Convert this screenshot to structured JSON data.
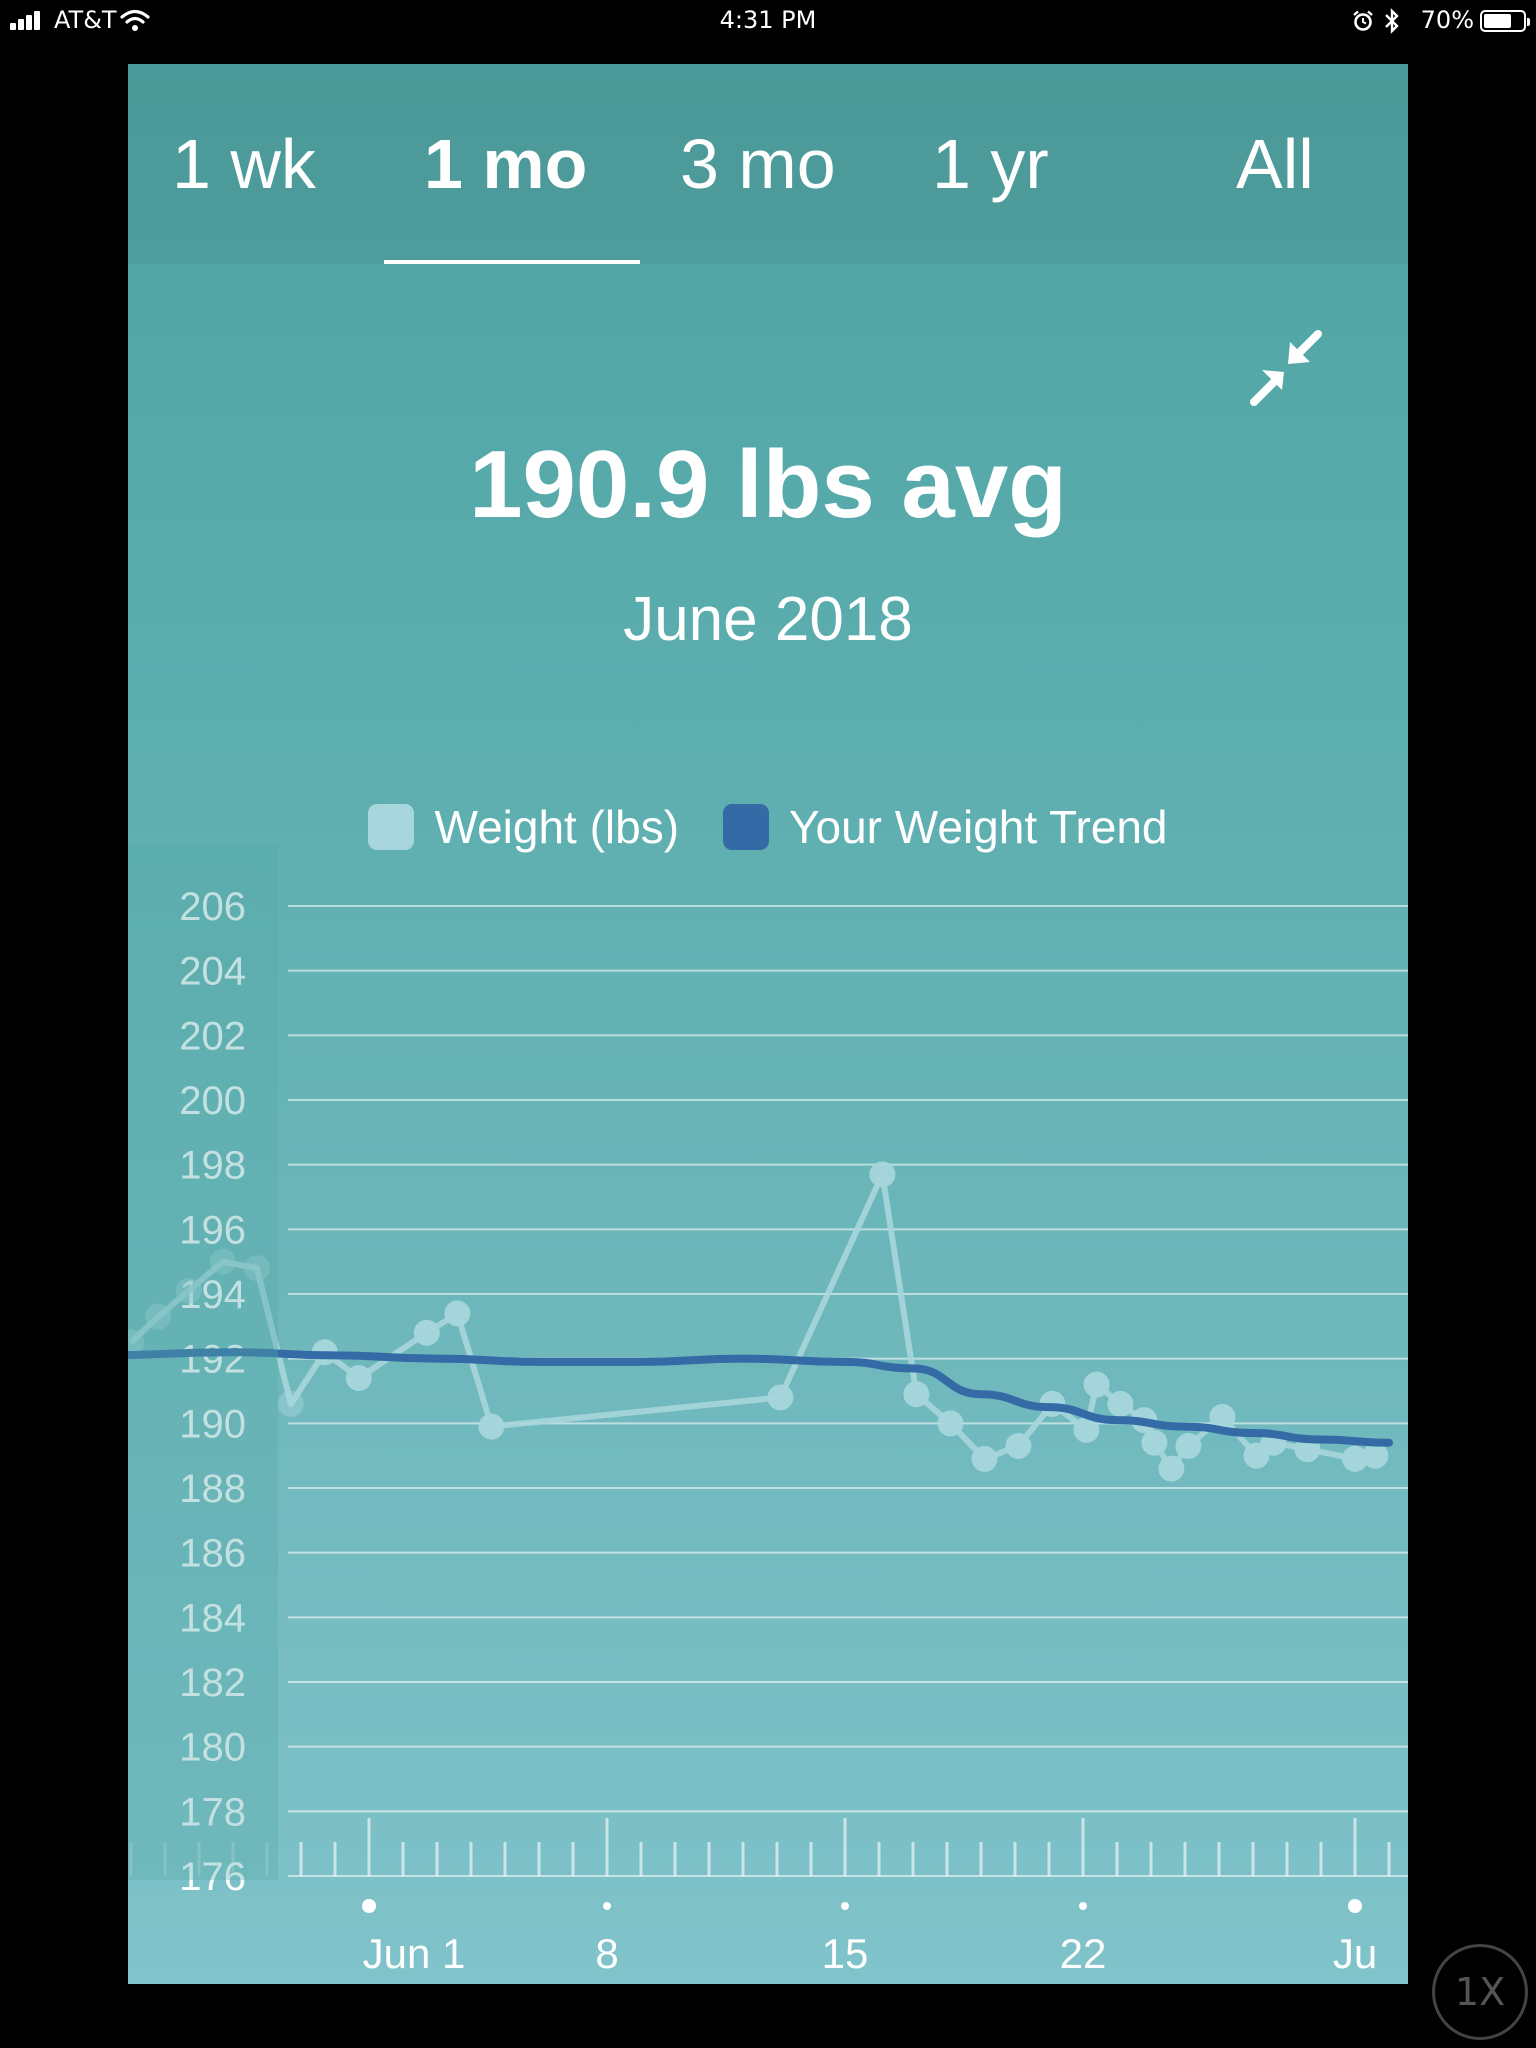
{
  "status_bar": {
    "carrier": "AT&T",
    "time": "4:31 PM",
    "battery": "70%",
    "battery_level": 0.7,
    "icons": [
      "signal-icon",
      "wifi-icon",
      "alarm-icon",
      "bluetooth-icon",
      "battery-icon"
    ]
  },
  "tabs": [
    {
      "label": "1 wk",
      "active": false
    },
    {
      "label": "1 mo",
      "active": true
    },
    {
      "label": "3 mo",
      "active": false
    },
    {
      "label": "1 yr",
      "active": false
    },
    {
      "label": "All",
      "active": false
    }
  ],
  "summary": {
    "average": "190.9 lbs avg",
    "period": "June 2018"
  },
  "controls": {
    "collapse_icon": "collapse-arrows-icon",
    "zoom_badge": "1X"
  },
  "colors": {
    "weight": "#a7d6dc",
    "trend": "#346aa6",
    "background": "#56a9a9"
  },
  "chart_data": {
    "type": "line",
    "ylim": [
      176,
      206
    ],
    "y_ticks": [
      206,
      204,
      202,
      200,
      198,
      196,
      194,
      192,
      190,
      188,
      186,
      184,
      182,
      180,
      178,
      176
    ],
    "x_ticks": [
      {
        "label": "Jun 1",
        "day": 1
      },
      {
        "label": "8",
        "day": 8
      },
      {
        "label": "15",
        "day": 15
      },
      {
        "label": "22",
        "day": 22
      },
      {
        "label": "Ju",
        "day": 30
      }
    ],
    "legend": [
      "Weight (lbs)",
      "Your Weight Trend"
    ],
    "series": [
      {
        "name": "Weight (lbs)",
        "x": [
          -6,
          -5.2,
          -4.3,
          -3.3,
          -2.3,
          -1.3,
          -0.3,
          0.7,
          2.7,
          3.6,
          4.6,
          13.1,
          16.1,
          17.1,
          18.1,
          19.1,
          20.1,
          21.1,
          22.1,
          22.4,
          23.1,
          23.8,
          24.1,
          24.6,
          25.1,
          26.1,
          27.1,
          27.6,
          28.6,
          30.0,
          30.6
        ],
        "values": [
          192.5,
          193.3,
          194.1,
          195.0,
          194.8,
          190.6,
          192.2,
          191.4,
          192.8,
          193.4,
          189.9,
          190.8,
          197.7,
          190.9,
          190.0,
          188.9,
          189.3,
          190.6,
          189.8,
          191.2,
          190.6,
          190.1,
          189.4,
          188.6,
          189.3,
          190.2,
          189.0,
          189.4,
          189.2,
          188.9,
          189.0
        ]
      },
      {
        "name": "Your Weight Trend",
        "x": [
          -7,
          -3,
          0,
          3,
          6,
          9,
          12,
          15,
          17,
          19,
          21,
          23,
          25,
          27,
          29,
          31
        ],
        "values": [
          192.1,
          192.2,
          192.1,
          192.0,
          191.9,
          191.9,
          192.0,
          191.9,
          191.7,
          190.9,
          190.5,
          190.1,
          189.9,
          189.7,
          189.5,
          189.4
        ]
      }
    ]
  }
}
